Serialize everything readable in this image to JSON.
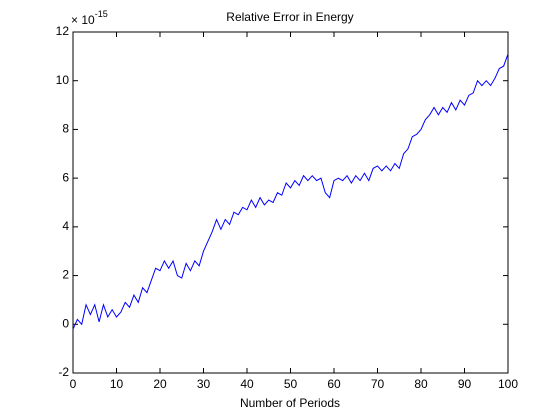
{
  "chart_data": {
    "type": "line",
    "title": "Relative Error in Energy",
    "xlabel": "Number of Periods",
    "y_multiplier": {
      "base": "× 10",
      "exponent": "-15"
    },
    "x": [
      0,
      1,
      2,
      3,
      4,
      5,
      6,
      7,
      8,
      9,
      10,
      11,
      12,
      13,
      14,
      15,
      16,
      17,
      18,
      19,
      20,
      21,
      22,
      23,
      24,
      25,
      26,
      27,
      28,
      29,
      30,
      31,
      32,
      33,
      34,
      35,
      36,
      37,
      38,
      39,
      40,
      41,
      42,
      43,
      44,
      45,
      46,
      47,
      48,
      49,
      50,
      51,
      52,
      53,
      54,
      55,
      56,
      57,
      58,
      59,
      60,
      61,
      62,
      63,
      64,
      65,
      66,
      67,
      68,
      69,
      70,
      71,
      72,
      73,
      74,
      75,
      76,
      77,
      78,
      79,
      80,
      81,
      82,
      83,
      84,
      85,
      86,
      87,
      88,
      89,
      90,
      91,
      92,
      93,
      94,
      95,
      96,
      97,
      98,
      99,
      100
    ],
    "series": [
      {
        "color": "#0000ff",
        "values": [
          -0.2,
          0.2,
          0,
          0.8,
          0.4,
          0.8,
          0.1,
          0.8,
          0.3,
          0.6,
          0.3,
          0.5,
          0.9,
          0.7,
          1.2,
          0.9,
          1.5,
          1.3,
          1.8,
          2.3,
          2.2,
          2.6,
          2.3,
          2.6,
          2.0,
          1.9,
          2.5,
          2.2,
          2.6,
          2.4,
          3.0,
          3.4,
          3.8,
          4.3,
          3.9,
          4.3,
          4.1,
          4.6,
          4.5,
          4.8,
          4.7,
          5.1,
          4.8,
          5.2,
          4.9,
          5.1,
          5.0,
          5.4,
          5.3,
          5.8,
          5.6,
          5.9,
          5.7,
          6.1,
          5.9,
          6.1,
          5.9,
          6.0,
          5.4,
          5.2,
          5.9,
          6.0,
          5.9,
          6.1,
          5.8,
          6.1,
          5.9,
          6.2,
          5.9,
          6.4,
          6.5,
          6.3,
          6.5,
          6.3,
          6.6,
          6.4,
          7.0,
          7.2,
          7.7,
          7.8,
          8.0,
          8.4,
          8.6,
          8.9,
          8.6,
          8.9,
          8.7,
          9.1,
          8.8,
          9.2,
          9.0,
          9.4,
          9.5,
          10.0,
          9.8,
          10.0,
          9.8,
          10.1,
          10.5,
          10.6,
          11.1
        ]
      }
    ],
    "xlim": [
      0,
      100
    ],
    "xticks": [
      0,
      10,
      20,
      30,
      40,
      50,
      60,
      70,
      80,
      90,
      100
    ],
    "ylim": [
      -2,
      12
    ],
    "yticks": [
      -2,
      0,
      2,
      4,
      6,
      8,
      10,
      12
    ],
    "grid": false
  }
}
